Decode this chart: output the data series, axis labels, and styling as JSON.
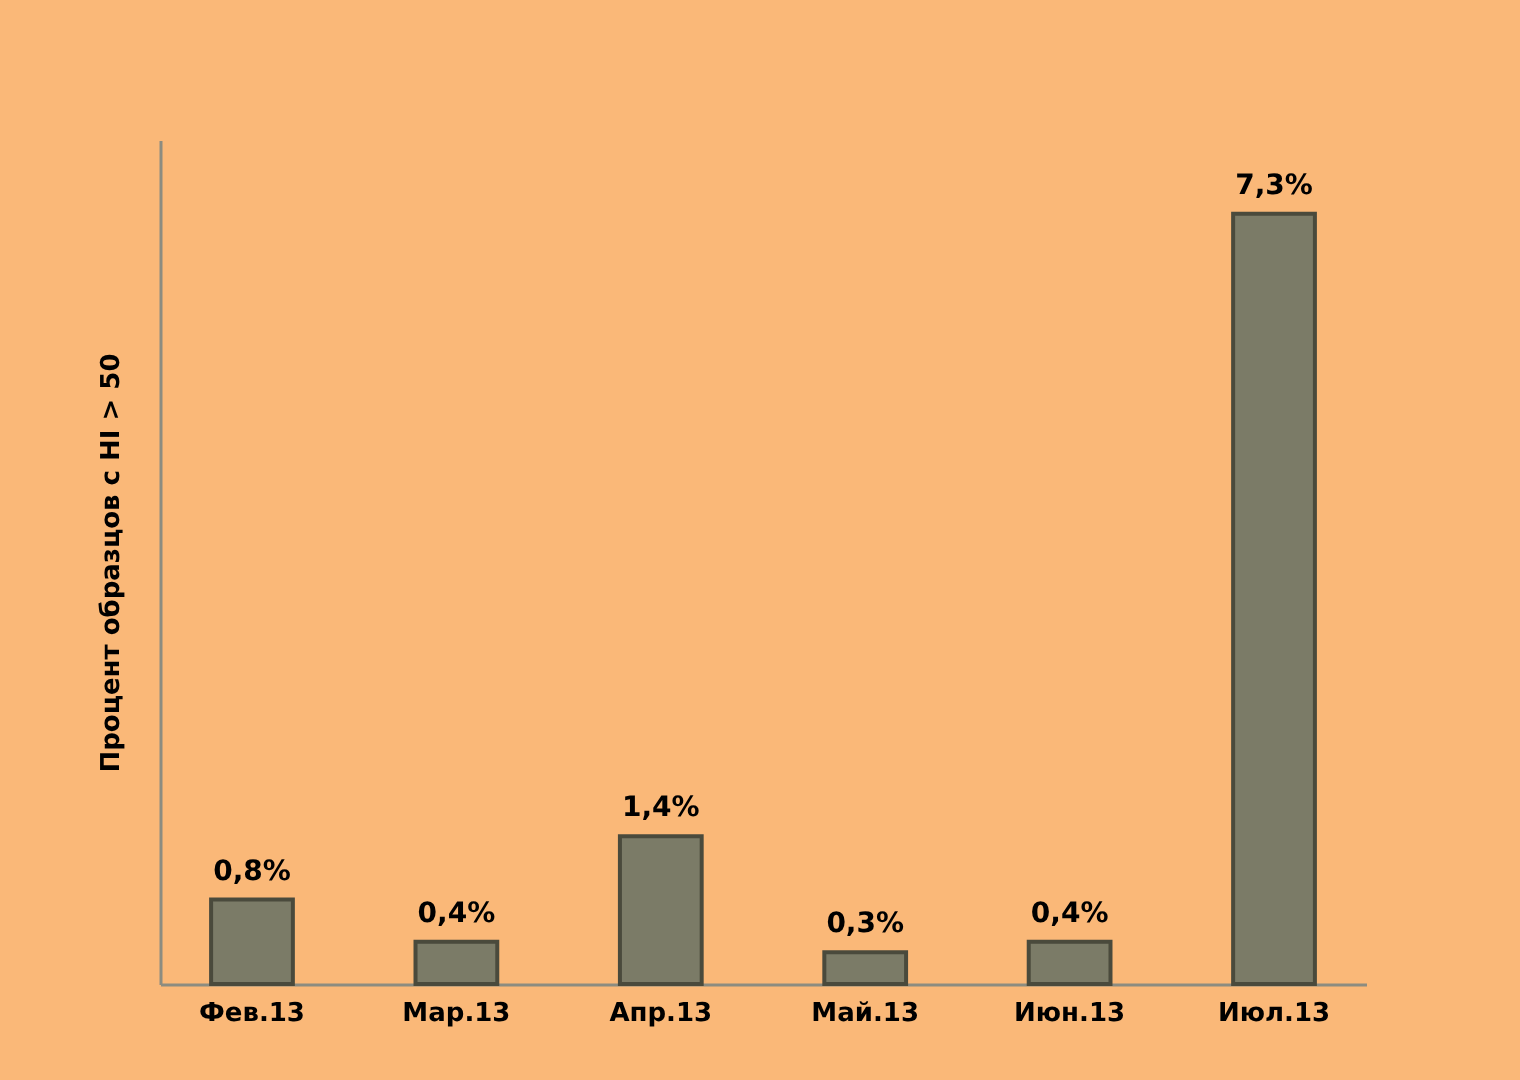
{
  "chart_data": {
    "type": "bar",
    "ylabel": "Процент образцов с HI > 50",
    "categories": [
      "Фев.13",
      "Мар.13",
      "Апр.13",
      "Май.13",
      "Июн.13",
      "Июл.13"
    ],
    "values": [
      0.8,
      0.4,
      1.4,
      0.3,
      0.4,
      7.3
    ],
    "value_labels": [
      "0,8%",
      "0,4%",
      "1,4%",
      "0,3%",
      "0,4%",
      "7,3%"
    ],
    "color": "#7b7b67"
  }
}
